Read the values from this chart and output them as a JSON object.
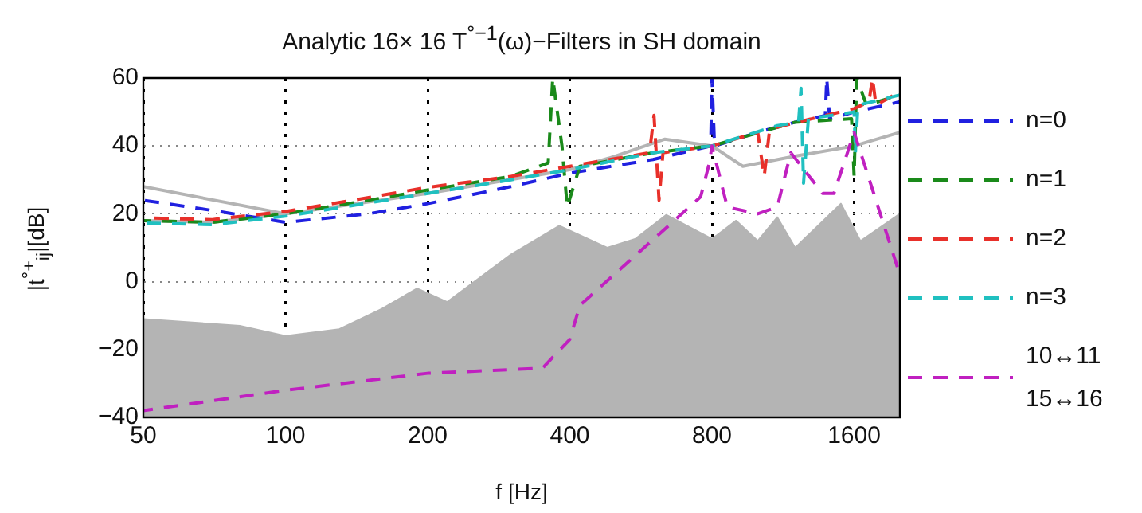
{
  "chart_data": {
    "type": "line",
    "title": "Analytic 16× 16 T$^{°−1}$(ω)−Filters in SH domain",
    "xlabel": "f [Hz]",
    "ylabel": "|t$^{°+}$$_{ij}$|[dB]",
    "log": "x",
    "xlim": [
      50,
      2000
    ],
    "xticks": [
      50,
      100,
      200,
      400,
      800,
      1600
    ],
    "ylim": [
      -40,
      60
    ],
    "yticks": [
      -40,
      -20,
      0,
      20,
      40,
      60
    ],
    "grid": true,
    "legend": "right",
    "marker": "none",
    "series": [
      {
        "type": "area",
        "color": "#b4b4b4",
        "line_style": "solid",
        "x": [
          50,
          80,
          100,
          130,
          160,
          190,
          220,
          300,
          380,
          480,
          550,
          640,
          800,
          900,
          1000,
          1100,
          1200,
          1500,
          1650,
          2000
        ],
        "values": [
          -11,
          -13,
          -16,
          -14,
          -8,
          -2,
          -6,
          8,
          16.5,
          10,
          12.6,
          19.7,
          12.6,
          18,
          12,
          19,
          10,
          23,
          12,
          20
        ]
      },
      {
        "color": "#b4b4b4",
        "line_style": "solid",
        "x": [
          50,
          100
        ],
        "values": [
          28,
          20
        ]
      },
      {
        "color": "#b4b4b4",
        "line_style": "solid",
        "x": [
          50,
          70,
          100,
          200,
          400,
          500,
          636,
          800,
          930,
          1200,
          1600,
          2000
        ],
        "values": [
          18,
          17.5,
          20,
          26,
          33,
          37,
          42,
          40,
          34,
          37,
          40,
          44
        ]
      },
      {
        "name": "n=0",
        "color": "#2020e0",
        "line_style": "dashed",
        "x": [
          50,
          70,
          100,
          150,
          200,
          300,
          400,
          600,
          795,
          800,
          810,
          1000,
          1200,
          1390,
          1400,
          1420,
          1600,
          2000
        ],
        "values": [
          24,
          21,
          17.5,
          20,
          23,
          28,
          32,
          36,
          40,
          60,
          40,
          44,
          47,
          49,
          60,
          48,
          50,
          53
        ]
      },
      {
        "name": "n=1",
        "color": "#1a8a1a",
        "line_style": "dashed",
        "x": [
          50,
          70,
          100,
          150,
          200,
          300,
          360,
          368,
          385,
          395,
          420,
          600,
          800,
          1200,
          1580,
          1600,
          1620,
          1700,
          2000
        ],
        "values": [
          18,
          17.5,
          20,
          24,
          27,
          31,
          35,
          60,
          40,
          22,
          34,
          38,
          40,
          47,
          48,
          31,
          60,
          52,
          55
        ]
      },
      {
        "name": "n=2",
        "color": "#e8302a",
        "line_style": "dashed",
        "x": [
          50,
          70,
          100,
          150,
          200,
          300,
          400,
          590,
          603,
          618,
          630,
          800,
          1000,
          1032,
          1060,
          1300,
          1600,
          1720,
          1750,
          1780,
          2000
        ],
        "values": [
          18.8,
          18.3,
          20.7,
          24.8,
          27.8,
          31,
          34,
          38,
          49,
          24,
          38,
          40,
          44,
          31,
          45,
          48,
          51,
          53,
          60,
          52,
          56
        ]
      },
      {
        "name": "n=3",
        "color": "#20c0c0",
        "line_style": "dashed",
        "x": [
          50,
          70,
          100,
          150,
          200,
          300,
          400,
          600,
          800,
          1100,
          1220,
          1235,
          1250,
          1280,
          1600,
          1610,
          1630,
          2000
        ],
        "values": [
          17.3,
          16.8,
          19.3,
          23.2,
          26,
          30,
          33,
          38,
          40,
          46,
          47,
          57,
          29,
          48,
          50,
          38,
          52,
          55
        ]
      },
      {
        "name": "10↔11 15↔16",
        "color": "#c020c0",
        "line_style": "dashed",
        "x": [
          50,
          100,
          200,
          350,
          400,
          420,
          757,
          790,
          800,
          862,
          1000,
          1100,
          1175,
          1372,
          1450,
          1600,
          2000
        ],
        "values": [
          -38,
          -32,
          -27,
          -25.5,
          -17,
          -7,
          25,
          35,
          40,
          22,
          20,
          22,
          38,
          26,
          26,
          44,
          2
        ]
      }
    ]
  }
}
